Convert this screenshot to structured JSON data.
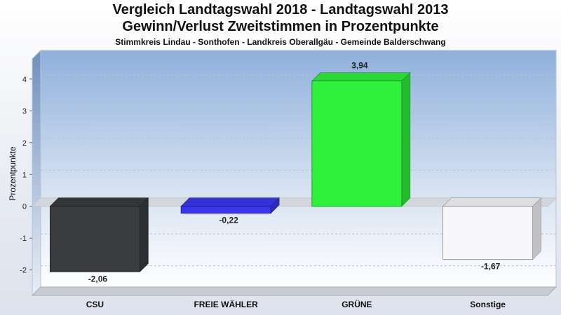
{
  "titles": {
    "line1": "Vergleich Landtagswahl 2018 - Landtagswahl 2013",
    "line2": "Gewinn/Verlust Zweitstimmen in Prozentpunkte",
    "line3": "Stimmkreis Lindau - Sonthofen - Landkreis Oberallgäu - Gemeinde Balderschwang"
  },
  "chart_data": {
    "type": "bar",
    "categories": [
      "CSU",
      "FREIE WÄHLER",
      "GRÜNE",
      "Sonstige"
    ],
    "values": [
      -2.06,
      -0.22,
      3.94,
      -1.67
    ],
    "value_labels": [
      "-2,06",
      "-0,22",
      "3,94",
      "-1,67"
    ],
    "colors": [
      "#3a3b3e",
      "#3a36f0",
      "#2ff03c",
      "#f7f7fa"
    ],
    "ylabel": "Prozentpunkte",
    "ylim": [
      -2.8,
      4.9
    ],
    "yticks": [
      -2,
      -1,
      0,
      1,
      2,
      3,
      4
    ],
    "ytick_labels": [
      "-2",
      "-1",
      "0",
      "1",
      "2",
      "3",
      "4"
    ],
    "grid": true,
    "legend": "none"
  }
}
